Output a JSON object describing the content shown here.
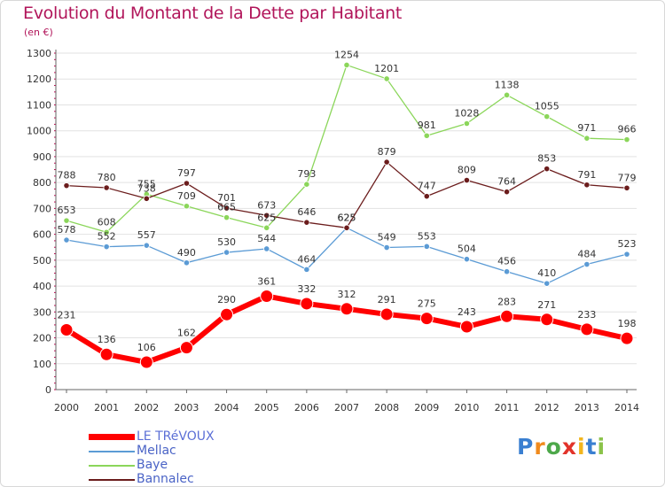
{
  "title": "Evolution du Montant de la Dette par Habitant",
  "subtitle": "(en €)",
  "chart_data": {
    "type": "line",
    "x": [
      "2000",
      "2001",
      "2002",
      "2003",
      "2004",
      "2005",
      "2006",
      "2007",
      "2008",
      "2009",
      "2010",
      "2011",
      "2012",
      "2013",
      "2014"
    ],
    "ylim": [
      0,
      1300
    ],
    "yticks": [
      "0",
      "100",
      "200",
      "300",
      "400",
      "500",
      "600",
      "700",
      "800",
      "900",
      "1000",
      "1100",
      "1200",
      "1300"
    ],
    "grid": true,
    "legend_position": "bottom-left",
    "series": [
      {
        "name": "LE TRéVOUX",
        "color": "#ff0000",
        "values": [
          231,
          136,
          106,
          162,
          290,
          361,
          332,
          312,
          291,
          275,
          243,
          283,
          271,
          233,
          198
        ],
        "labels": [
          "231",
          "136",
          "106",
          "162",
          "290",
          "361",
          "332",
          "312",
          "291",
          "275",
          "243",
          "283",
          "271",
          "233",
          "198"
        ]
      },
      {
        "name": "Mellac",
        "color": "#5b9bd5",
        "values": [
          578,
          552,
          557,
          490,
          530,
          544,
          464,
          625,
          549,
          553,
          504,
          456,
          410,
          484,
          523
        ],
        "labels": [
          "578",
          "552",
          "557",
          "490",
          "530",
          "544",
          "464",
          "625",
          "549",
          "553",
          "504",
          "456",
          "410",
          "484",
          "523"
        ]
      },
      {
        "name": "Baye",
        "color": "#8bd65a",
        "values": [
          653,
          608,
          755,
          709,
          665,
          625,
          793,
          1254,
          1201,
          981,
          1028,
          1138,
          1055,
          971,
          966
        ],
        "labels": [
          "653",
          "608",
          "755",
          "709",
          "665",
          "625",
          "793",
          "1254",
          "1201",
          "981",
          "1028",
          "1138",
          "1055",
          "971",
          "966"
        ]
      },
      {
        "name": "Bannalec",
        "color": "#6b1c1c",
        "values": [
          788,
          780,
          738,
          797,
          701,
          673,
          646,
          625,
          879,
          747,
          809,
          764,
          853,
          791,
          779
        ],
        "labels": [
          "788",
          "780",
          "738",
          "797",
          "701",
          "673",
          "646",
          "625",
          "879",
          "747",
          "809",
          "764",
          "853",
          "791",
          "779"
        ]
      }
    ]
  },
  "logo": {
    "letters": [
      "P",
      "r",
      "o",
      "x",
      "i",
      "t",
      "i"
    ],
    "colors": [
      "#3a7fd1",
      "#f08a1d",
      "#4da84a",
      "#e2332a",
      "#f2b51d",
      "#3a7fd1",
      "#8bc34a"
    ]
  }
}
